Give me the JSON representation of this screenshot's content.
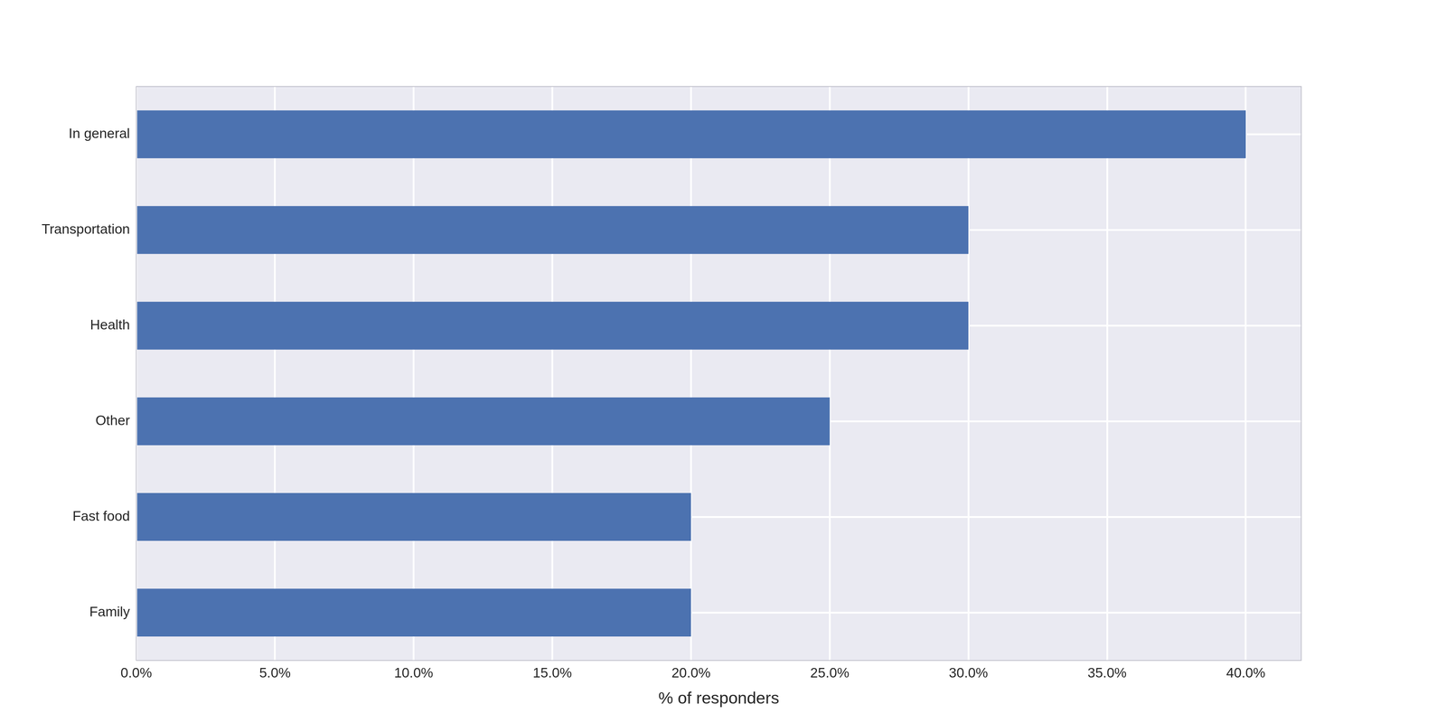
{
  "chart_data": {
    "type": "bar",
    "orientation": "horizontal",
    "categories": [
      "In general",
      "Transportation",
      "Health",
      "Other",
      "Fast food",
      "Family"
    ],
    "values": [
      40,
      30,
      30,
      25,
      20,
      20
    ],
    "color": "#4c72b0",
    "x_label": "% of responders",
    "xlim": [
      0,
      42
    ],
    "xticks": [
      {
        "value": 0,
        "label": "0.0%"
      },
      {
        "value": 5,
        "label": "5.0%"
      },
      {
        "value": 10,
        "label": "10.0%"
      },
      {
        "value": 15,
        "label": "15.0%"
      },
      {
        "value": 20,
        "label": "20.0%"
      },
      {
        "value": 25,
        "label": "25.0%"
      },
      {
        "value": 30,
        "label": "30.0%"
      },
      {
        "value": 35,
        "label": "35.0%"
      },
      {
        "value": 40,
        "label": "40.0%"
      }
    ],
    "grid": true
  }
}
